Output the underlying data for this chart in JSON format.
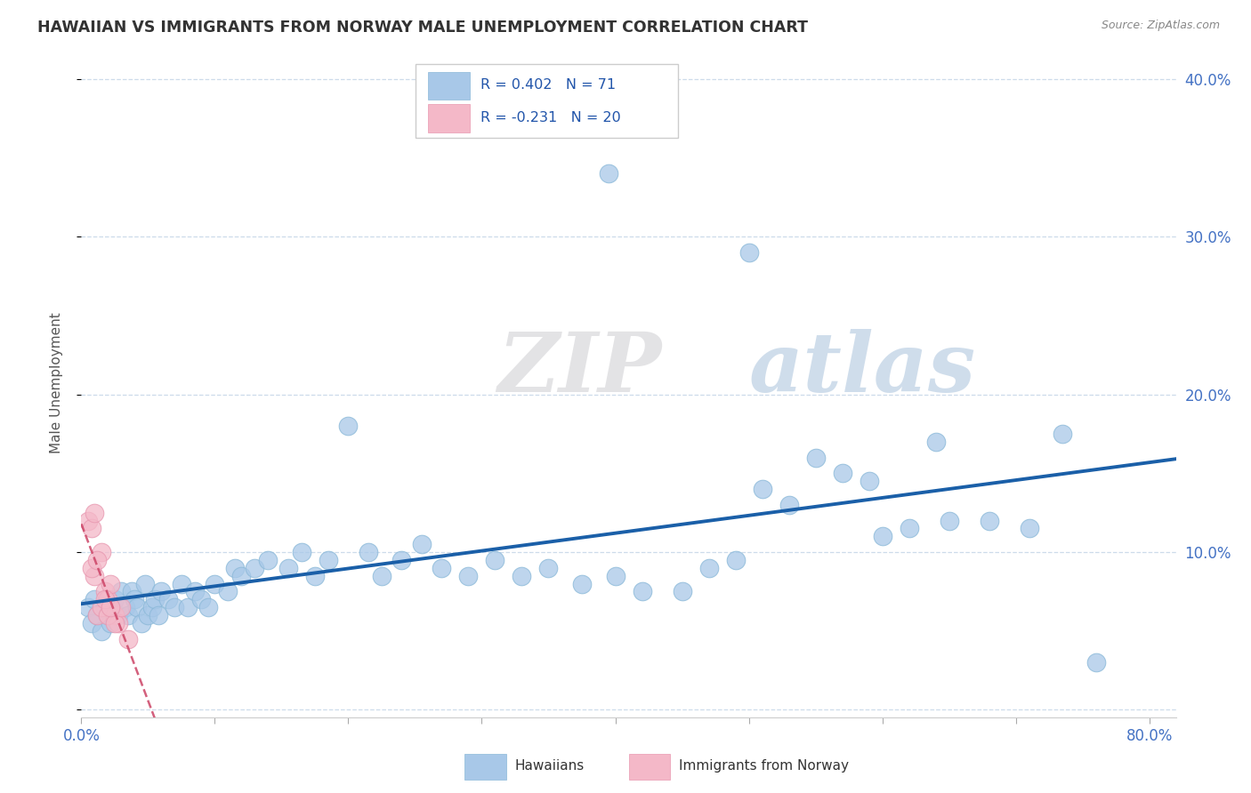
{
  "title": "HAWAIIAN VS IMMIGRANTS FROM NORWAY MALE UNEMPLOYMENT CORRELATION CHART",
  "source": "Source: ZipAtlas.com",
  "ylabel": "Male Unemployment",
  "watermark_zip": "ZIP",
  "watermark_atlas": "atlas",
  "xlim": [
    0.0,
    0.82
  ],
  "ylim": [
    -0.005,
    0.42
  ],
  "xticks": [
    0.0,
    0.1,
    0.2,
    0.3,
    0.4,
    0.5,
    0.6,
    0.7,
    0.8
  ],
  "yticks": [
    0.0,
    0.1,
    0.2,
    0.3,
    0.4
  ],
  "right_ytick_labels": [
    "10.0%",
    "20.0%",
    "30.0%",
    "40.0%"
  ],
  "right_yticks": [
    0.1,
    0.2,
    0.3,
    0.4
  ],
  "blue_color": "#a8c8e8",
  "pink_color": "#f4b8c8",
  "line_blue": "#1a5fa8",
  "line_pink": "#cc4466",
  "grid_color": "#c8d8e8",
  "background_color": "#ffffff",
  "hawaiians_x": [
    0.005,
    0.008,
    0.01,
    0.012,
    0.015,
    0.018,
    0.02,
    0.022,
    0.025,
    0.028,
    0.03,
    0.033,
    0.035,
    0.038,
    0.04,
    0.042,
    0.045,
    0.048,
    0.05,
    0.053,
    0.055,
    0.058,
    0.06,
    0.065,
    0.07,
    0.075,
    0.08,
    0.085,
    0.09,
    0.095,
    0.1,
    0.11,
    0.115,
    0.12,
    0.13,
    0.14,
    0.155,
    0.165,
    0.175,
    0.185,
    0.2,
    0.215,
    0.225,
    0.24,
    0.255,
    0.27,
    0.29,
    0.31,
    0.33,
    0.35,
    0.375,
    0.4,
    0.42,
    0.45,
    0.47,
    0.49,
    0.51,
    0.53,
    0.55,
    0.57,
    0.59,
    0.62,
    0.65,
    0.68,
    0.71,
    0.735,
    0.395,
    0.5,
    0.6,
    0.64,
    0.76
  ],
  "hawaiians_y": [
    0.065,
    0.055,
    0.07,
    0.06,
    0.05,
    0.065,
    0.06,
    0.055,
    0.07,
    0.06,
    0.075,
    0.065,
    0.06,
    0.075,
    0.07,
    0.065,
    0.055,
    0.08,
    0.06,
    0.065,
    0.07,
    0.06,
    0.075,
    0.07,
    0.065,
    0.08,
    0.065,
    0.075,
    0.07,
    0.065,
    0.08,
    0.075,
    0.09,
    0.085,
    0.09,
    0.095,
    0.09,
    0.1,
    0.085,
    0.095,
    0.18,
    0.1,
    0.085,
    0.095,
    0.105,
    0.09,
    0.085,
    0.095,
    0.085,
    0.09,
    0.08,
    0.085,
    0.075,
    0.075,
    0.09,
    0.095,
    0.14,
    0.13,
    0.16,
    0.15,
    0.145,
    0.115,
    0.12,
    0.12,
    0.115,
    0.175,
    0.34,
    0.29,
    0.11,
    0.17,
    0.03
  ],
  "norway_x": [
    0.005,
    0.008,
    0.01,
    0.012,
    0.015,
    0.018,
    0.02,
    0.022,
    0.025,
    0.028,
    0.01,
    0.015,
    0.02,
    0.025,
    0.03,
    0.008,
    0.012,
    0.018,
    0.022,
    0.035
  ],
  "norway_y": [
    0.12,
    0.115,
    0.125,
    0.06,
    0.065,
    0.075,
    0.07,
    0.08,
    0.06,
    0.055,
    0.085,
    0.1,
    0.06,
    0.055,
    0.065,
    0.09,
    0.095,
    0.07,
    0.065,
    0.045
  ]
}
